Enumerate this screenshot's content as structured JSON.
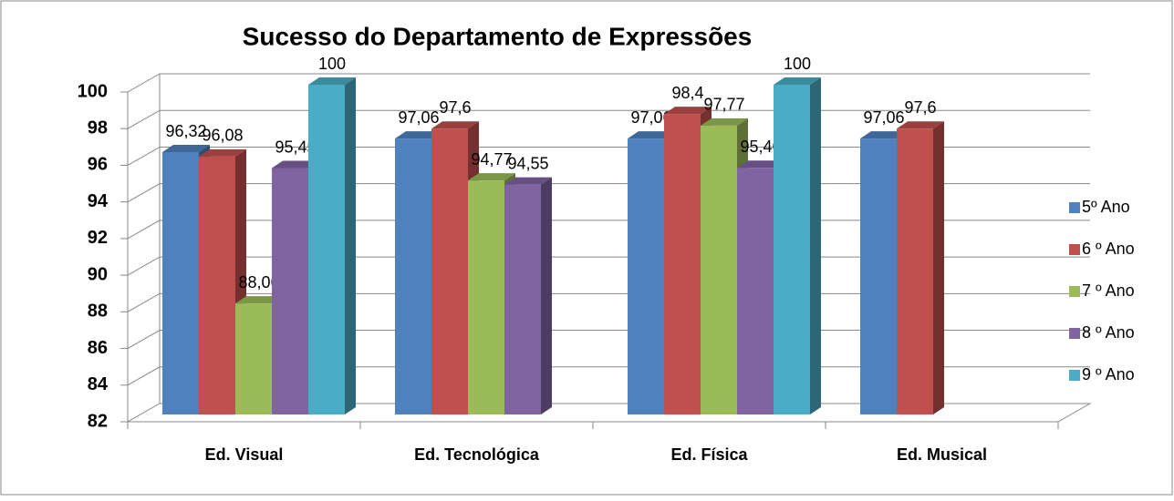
{
  "chart_data": {
    "type": "bar3d",
    "title": "Sucesso do Departamento de Expressões",
    "categories": [
      "Ed. Visual",
      "Ed. Tecnológica",
      "Ed. Física",
      "Ed. Musical"
    ],
    "series": [
      {
        "name": "5º Ano",
        "color": "#4f81bd",
        "values": [
          96.32,
          97.06,
          97.06,
          97.06
        ],
        "value_labels": [
          "96,32",
          "97,06",
          "97,06",
          "97,06"
        ]
      },
      {
        "name": "6 º Ano",
        "color": "#c0504d",
        "values": [
          96.08,
          97.6,
          98.4,
          97.6
        ],
        "value_labels": [
          "96,08",
          "97,6",
          "98,4",
          "97,6"
        ]
      },
      {
        "name": "7 º Ano",
        "color": "#9bbb59",
        "values": [
          88.06,
          94.77,
          97.77,
          null
        ],
        "value_labels": [
          "88,06",
          "94,77",
          "97,77",
          null
        ]
      },
      {
        "name": "8 º Ano",
        "color": "#8064a2",
        "values": [
          95.45,
          94.55,
          95.46,
          null
        ],
        "value_labels": [
          "95,45",
          "94,55",
          "95,46",
          null
        ]
      },
      {
        "name": "9 º Ano",
        "color": "#4bacc6",
        "values": [
          100,
          null,
          100,
          null
        ],
        "value_labels": [
          "100",
          null,
          "100",
          null
        ]
      }
    ],
    "ylim": [
      82,
      100
    ],
    "yticks": [
      82,
      84,
      86,
      88,
      90,
      92,
      94,
      96,
      98,
      100
    ],
    "grid": true,
    "legend": "right"
  }
}
